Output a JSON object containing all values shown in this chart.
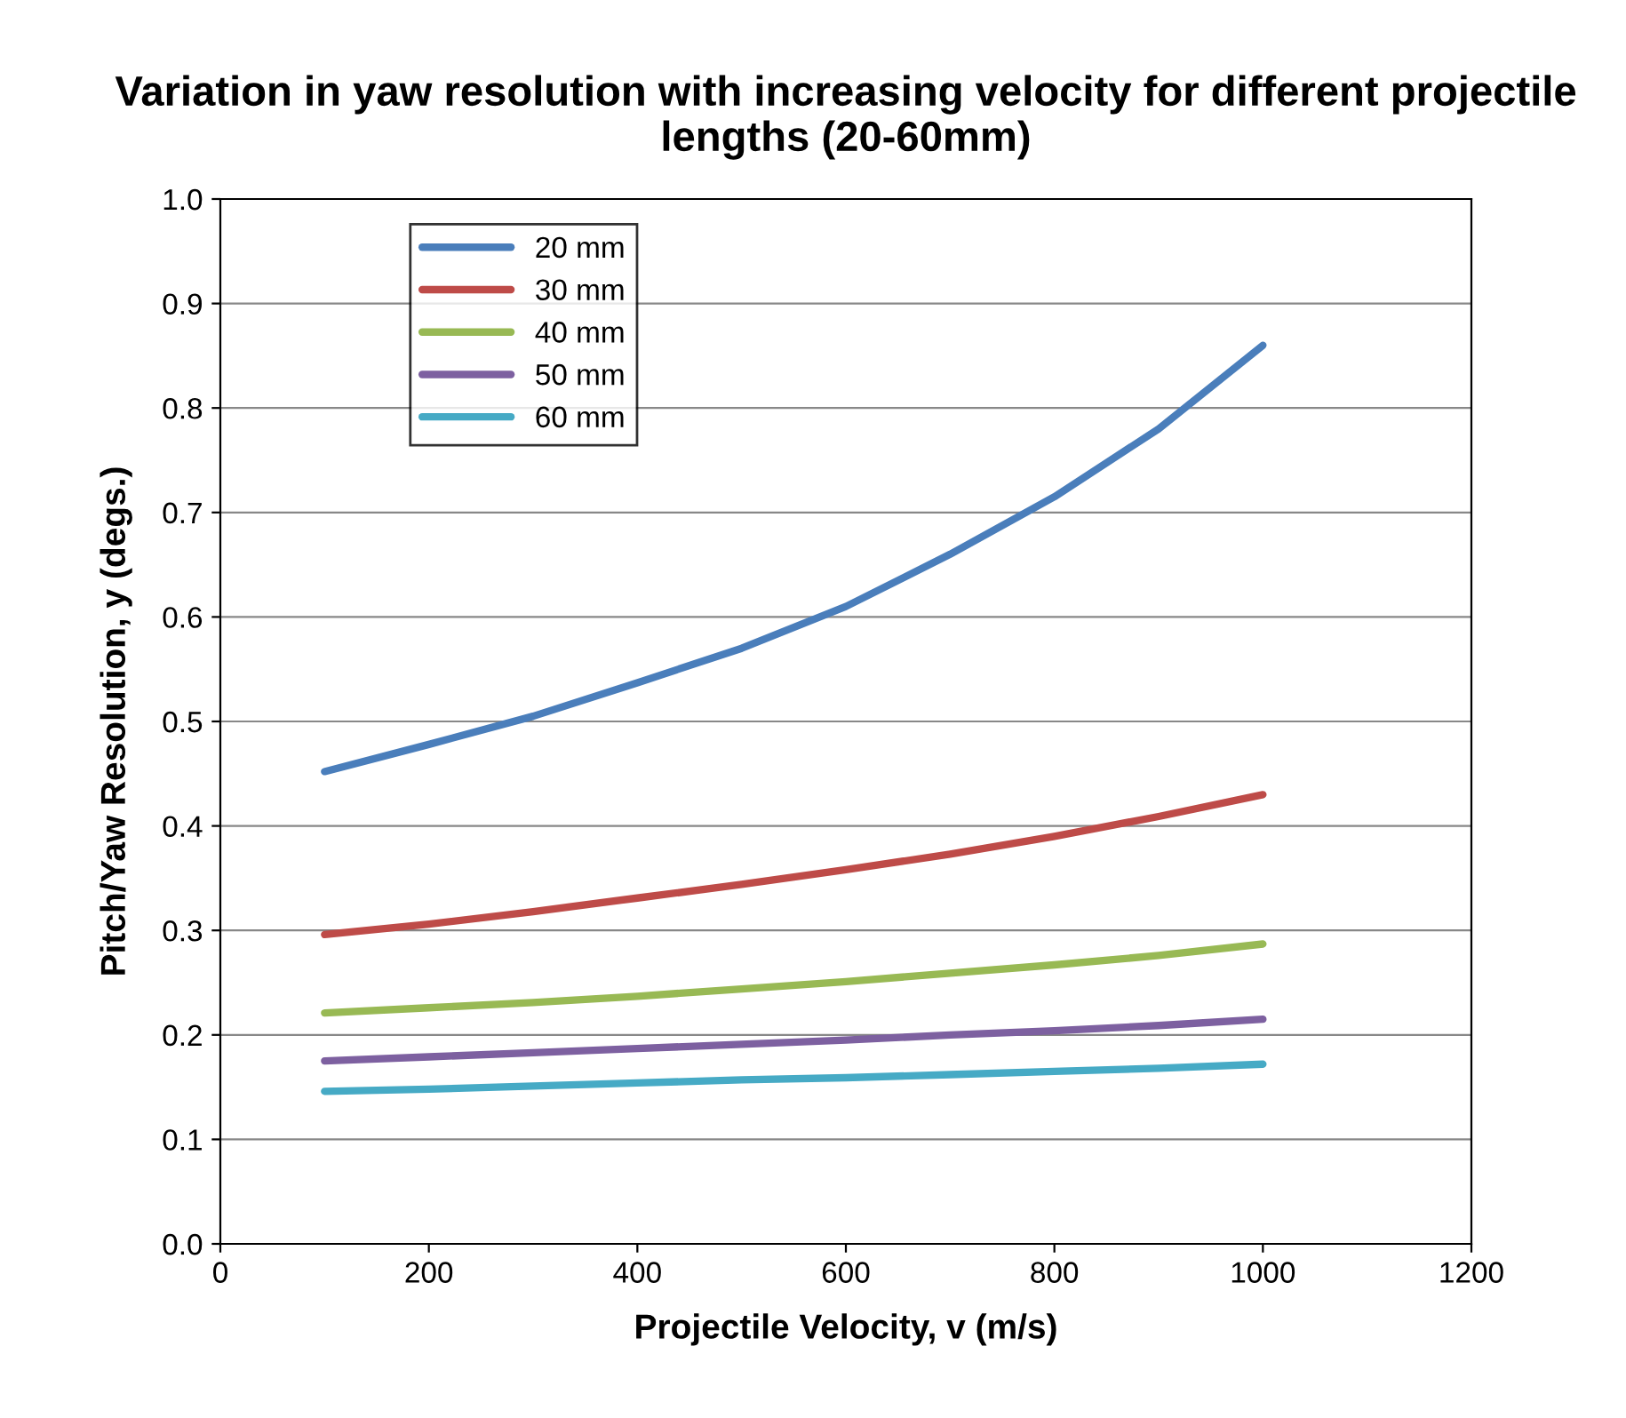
{
  "chart_data": {
    "type": "line",
    "title": "Variation in yaw resolution with increasing velocity for different projectile lengths (20-60mm)",
    "xlabel": "Projectile Velocity, v (m/s)",
    "ylabel": "Pitch/Yaw Resolution, y (degs.)",
    "x": [
      100,
      200,
      300,
      400,
      500,
      600,
      700,
      800,
      900,
      1000
    ],
    "series": [
      {
        "name": "20 mm",
        "color": "#4a7ebb",
        "values": [
          0.452,
          0.478,
          0.505,
          0.537,
          0.57,
          0.61,
          0.66,
          0.715,
          0.78,
          0.86
        ]
      },
      {
        "name": "30 mm",
        "color": "#be4b48",
        "values": [
          0.296,
          0.306,
          0.318,
          0.331,
          0.344,
          0.358,
          0.373,
          0.39,
          0.409,
          0.43
        ]
      },
      {
        "name": "40 mm",
        "color": "#98b954",
        "values": [
          0.221,
          0.226,
          0.231,
          0.237,
          0.244,
          0.251,
          0.259,
          0.267,
          0.276,
          0.287
        ]
      },
      {
        "name": "50 mm",
        "color": "#7d60a0",
        "values": [
          0.175,
          0.179,
          0.183,
          0.187,
          0.191,
          0.195,
          0.2,
          0.204,
          0.209,
          0.215
        ]
      },
      {
        "name": "60 mm",
        "color": "#46aac5",
        "values": [
          0.146,
          0.148,
          0.151,
          0.154,
          0.157,
          0.159,
          0.162,
          0.165,
          0.168,
          0.172
        ]
      }
    ],
    "xlim": [
      0,
      1200
    ],
    "xticks": [
      0,
      200,
      400,
      600,
      800,
      1000,
      1200
    ],
    "ylim": [
      0,
      1
    ],
    "yticks": [
      {
        "value": 0,
        "label": "0.0"
      },
      {
        "value": 0.1,
        "label": "0.1"
      },
      {
        "value": 0.2,
        "label": "0.2"
      },
      {
        "value": 0.3,
        "label": "0.3"
      },
      {
        "value": 0.4,
        "label": "0.4"
      },
      {
        "value": 0.5,
        "label": "0.5"
      },
      {
        "value": 0.6,
        "label": "0.6"
      },
      {
        "value": 0.7,
        "label": "0.7"
      },
      {
        "value": 0.8,
        "label": "0.8"
      },
      {
        "value": 0.9,
        "label": "0.9"
      },
      {
        "value": 1.0,
        "label": "1.0"
      }
    ],
    "grid": "y",
    "legend": "top left",
    "marker": "none",
    "line_style": "solid"
  }
}
